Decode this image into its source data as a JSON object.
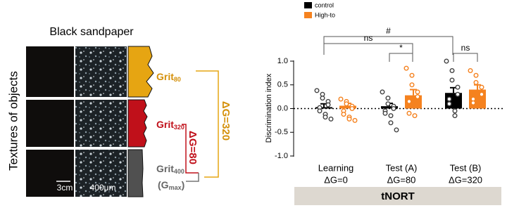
{
  "diagram": {
    "title": "Black sandpaper",
    "ylabel": "Textures of objects",
    "grits": [
      {
        "base": "Grit",
        "sub": "80"
      },
      {
        "base": "Grit",
        "sub": "320"
      },
      {
        "base": "Grit",
        "sub": "400"
      }
    ],
    "gmax": {
      "open": "(G",
      "sub": "max",
      "close": ")"
    },
    "deltas": [
      "ΔG=320",
      "ΔG=80"
    ],
    "scale_bars": [
      "3cm",
      "400μm"
    ]
  },
  "chart_data": {
    "type": "bar",
    "ylabel": "Discrimination index",
    "categories": [
      "Learning",
      "Test (A)",
      "Test (B)"
    ],
    "category_sublabels": [
      "ΔG=0",
      "ΔG=80",
      "ΔG=320"
    ],
    "footer": "tNORT",
    "annotations": [
      "#",
      "ns",
      "*",
      "ns"
    ],
    "series": [
      {
        "name": "control",
        "color": "#000000",
        "values": [
          0.03,
          0.05,
          0.33
        ],
        "errors": [
          0.07,
          0.06,
          0.11
        ],
        "points": [
          [
            0.38,
            0.3,
            0.22,
            0.15,
            0.08,
            0.02,
            -0.05,
            -0.12,
            -0.18,
            -0.22
          ],
          [
            0.35,
            0.22,
            0.1,
            0.05,
            0.0,
            -0.05,
            -0.1,
            -0.15,
            -0.3,
            -0.45
          ],
          [
            1.0,
            0.8,
            0.6,
            0.45,
            0.3,
            0.2,
            0.1,
            -0.05,
            -0.15
          ]
        ]
      },
      {
        "name": "High-to",
        "color": "#f5821f",
        "values": [
          0.06,
          0.28,
          0.4
        ],
        "errors": [
          0.05,
          0.12,
          0.1
        ],
        "points": [
          [
            0.2,
            0.15,
            0.1,
            0.05,
            0.0,
            -0.05,
            -0.12,
            -0.18,
            -0.22,
            -0.25
          ],
          [
            0.85,
            0.7,
            0.5,
            0.35,
            0.25,
            0.15,
            -0.1,
            -0.15
          ],
          [
            0.8,
            0.7,
            0.55,
            0.45,
            0.3,
            0.2,
            0.12
          ]
        ]
      }
    ],
    "ylim": [
      -1,
      1
    ],
    "yticks": [
      {
        "value": -1,
        "label": "-1.0"
      },
      {
        "value": -0.5,
        "label": "-0.5"
      },
      {
        "value": 0,
        "label": "0.0"
      },
      {
        "value": 0.5,
        "label": "0.5"
      },
      {
        "value": 1,
        "label": "1.0"
      }
    ]
  }
}
